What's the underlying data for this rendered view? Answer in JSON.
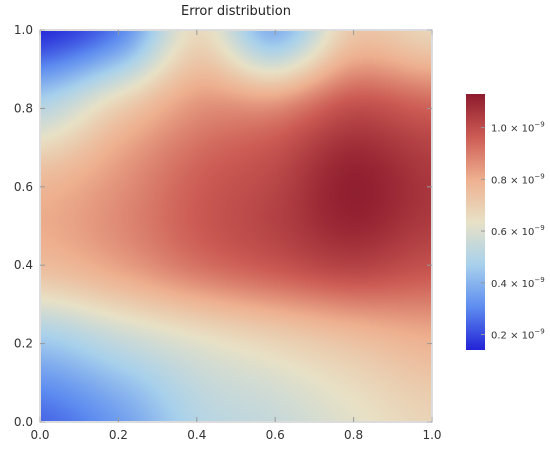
{
  "chart_data": {
    "type": "heatmap",
    "title": "Error distribution",
    "xlabel": "",
    "ylabel": "",
    "xlim": [
      0,
      1
    ],
    "ylim": [
      0,
      1
    ],
    "x_ticks": [
      "0.0",
      "0.2",
      "0.4",
      "0.6",
      "0.8",
      "1.0"
    ],
    "y_ticks": [
      "0.0",
      "0.2",
      "0.4",
      "0.6",
      "0.8",
      "1.0"
    ],
    "colorbar": {
      "range": [
        1.4e-10,
        1.13e-09
      ],
      "ticks": [
        {
          "mantissa": "0.2",
          "value": 2e-10
        },
        {
          "mantissa": "0.4",
          "value": 4e-10
        },
        {
          "mantissa": "0.6",
          "value": 6e-10
        },
        {
          "mantissa": "0.8",
          "value": 8e-10
        },
        {
          "mantissa": "1.0",
          "value": 1e-09
        }
      ],
      "tick_multiplier": "× 10",
      "tick_exponent": "−9",
      "colors": [
        "#2222d6",
        "#5d8cf0",
        "#a8d1ec",
        "#e8e1c6",
        "#eeb08f",
        "#cc5b54",
        "#8d1b2d"
      ]
    },
    "grid_x": [
      0.0,
      0.2,
      0.4,
      0.6,
      0.8,
      1.0
    ],
    "grid_y": [
      0.0,
      0.2,
      0.4,
      0.6,
      0.8,
      1.0
    ],
    "z_rows_bottom_to_top": [
      [
        2.5e-10,
        3.5e-10,
        5e-10,
        5.5e-10,
        6.2e-10,
        6.8e-10
      ],
      [
        4.5e-10,
        5.4e-10,
        6.2e-10,
        6.8e-10,
        7.4e-10,
        7.9e-10
      ],
      [
        7.6e-10,
        8.3e-10,
        9.2e-10,
        9.8e-10,
        1.03e-09,
        9.9e-10
      ],
      [
        7.8e-10,
        8.6e-10,
        9.6e-10,
        1.02e-09,
        1.12e-09,
        1.06e-09
      ],
      [
        5.2e-10,
        7.1e-10,
        8.6e-10,
        8.8e-10,
        1e-09,
        9.6e-10
      ],
      [
        1.6e-10,
        3e-10,
        6.6e-10,
        4e-10,
        7.2e-10,
        6.8e-10
      ]
    ]
  }
}
